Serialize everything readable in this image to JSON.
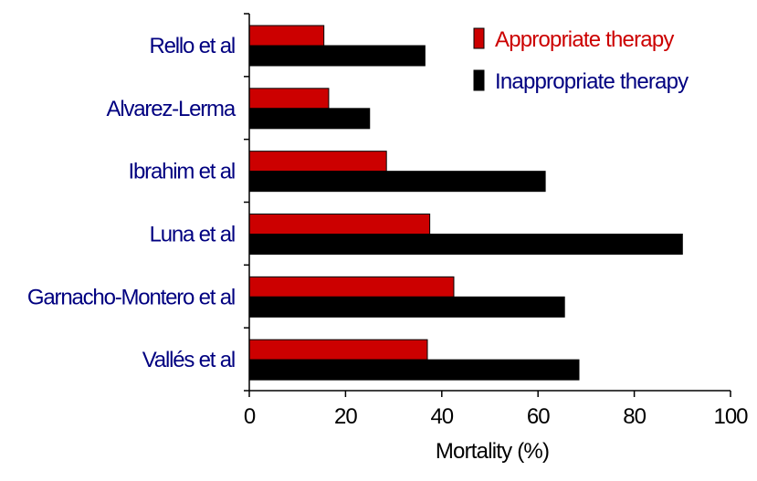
{
  "chart_data": {
    "type": "bar",
    "orientation": "horizontal",
    "categories": [
      "Rello et al",
      "Alvarez-Lerma",
      "Ibrahim et al",
      "Luna et al",
      "Garnacho-Montero et al",
      "Vallés et al"
    ],
    "series": [
      {
        "name": "Appropriate therapy",
        "color": "#cc0000",
        "values": [
          15.5,
          16.5,
          28.5,
          37.5,
          42.5,
          37
        ]
      },
      {
        "name": "Inappropriate therapy",
        "color": "#000000",
        "values": [
          36.5,
          25,
          61.5,
          90,
          65.5,
          68.5
        ]
      }
    ],
    "xlabel": "Mortality (%)",
    "xlim": [
      0,
      100
    ],
    "xticks": [
      0,
      20,
      40,
      60,
      80,
      100
    ],
    "grid": false,
    "legend_position": "top-right",
    "category_label_color": "#000080",
    "legend_text_colors": [
      "#cc0000",
      "#000080"
    ]
  }
}
